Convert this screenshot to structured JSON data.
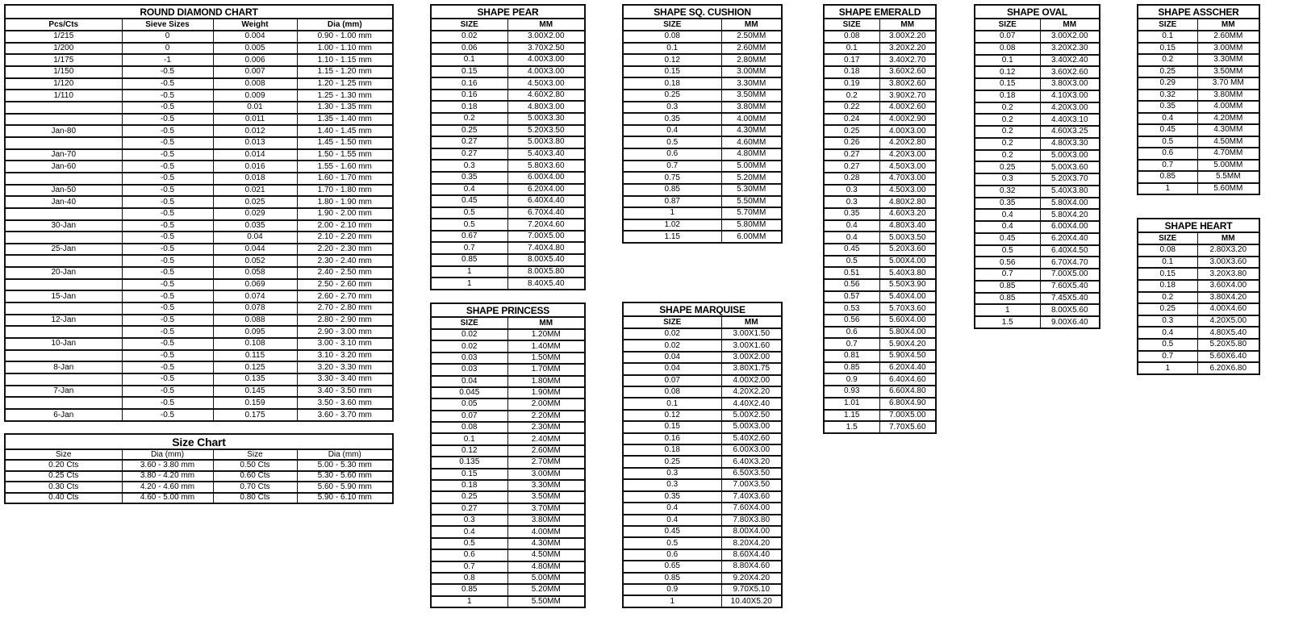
{
  "tables": [
    {
      "id": "round-diamond-chart",
      "title": "ROUND DIAMOND CHART",
      "headers": [
        "Pcs/Cts",
        "Sieve Sizes",
        "Weight",
        "Dia (mm)"
      ],
      "rows": [
        [
          "1/215",
          "0",
          "0.004",
          "0.90 - 1.00 mm"
        ],
        [
          "1/200",
          "0",
          "0.005",
          "1.00 - 1.10 mm"
        ],
        [
          "1/175",
          "-1",
          "0.006",
          "1.10 - 1.15 mm"
        ],
        [
          "1/150",
          "-0.5",
          "0.007",
          "1.15 - 1.20 mm"
        ],
        [
          "1/120",
          "-0.5",
          "0.008",
          "1.20 - 1.25 mm"
        ],
        [
          "1/110",
          "-0.5",
          "0.009",
          "1.25 - 1.30 mm"
        ],
        [
          "",
          "-0.5",
          "0.01",
          "1.30 - 1.35 mm"
        ],
        [
          "",
          "-0.5",
          "0.011",
          "1.35 - 1.40 mm"
        ],
        [
          "Jan-80",
          "-0.5",
          "0.012",
          "1.40 - 1.45 mm"
        ],
        [
          "",
          "-0.5",
          "0.013",
          "1.45 - 1.50 mm"
        ],
        [
          "Jan-70",
          "-0.5",
          "0.014",
          "1.50 - 1.55 mm"
        ],
        [
          "Jan-60",
          "-0.5",
          "0.016",
          "1.55 - 1.60 mm"
        ],
        [
          "",
          "-0.5",
          "0.018",
          "1.60 - 1.70 mm"
        ],
        [
          "Jan-50",
          "-0.5",
          "0.021",
          "1.70 - 1.80 mm"
        ],
        [
          "Jan-40",
          "-0.5",
          "0.025",
          "1.80 - 1.90 mm"
        ],
        [
          "",
          "-0.5",
          "0.029",
          "1.90 - 2.00 mm"
        ],
        [
          "30-Jan",
          "-0.5",
          "0.035",
          "2.00 - 2.10 mm"
        ],
        [
          "",
          "-0.5",
          "0.04",
          "2.10 - 2.20 mm"
        ],
        [
          "25-Jan",
          "-0.5",
          "0.044",
          "2.20 - 2.30 mm"
        ],
        [
          "",
          "-0.5",
          "0.052",
          "2.30 - 2.40 mm"
        ],
        [
          "20-Jan",
          "-0.5",
          "0.058",
          "2.40 - 2.50 mm"
        ],
        [
          "",
          "-0.5",
          "0.069",
          "2.50 - 2.60 mm"
        ],
        [
          "15-Jan",
          "-0.5",
          "0.074",
          "2.60 - 2.70 mm"
        ],
        [
          "",
          "-0.5",
          "0.078",
          "2.70 - 2.80 mm"
        ],
        [
          "12-Jan",
          "-0.5",
          "0.088",
          "2.80 - 2.90 mm"
        ],
        [
          "",
          "-0.5",
          "0.095",
          "2.90 - 3.00 mm"
        ],
        [
          "10-Jan",
          "-0.5",
          "0.108",
          "3.00 - 3.10 mm"
        ],
        [
          "",
          "-0.5",
          "0.115",
          "3.10 - 3.20 mm"
        ],
        [
          "8-Jan",
          "-0.5",
          "0.125",
          "3.20 - 3.30 mm"
        ],
        [
          "",
          "-0.5",
          "0.135",
          "3.30 - 3.40 mm"
        ],
        [
          "7-Jan",
          "-0.5",
          "0.145",
          "3.40 - 3.50 mm"
        ],
        [
          "",
          "-0.5",
          "0.159",
          "3.50 - 3.60 mm"
        ],
        [
          "6-Jan",
          "-0.5",
          "0.175",
          "3.60 - 3.70 mm"
        ]
      ]
    },
    {
      "id": "size-chart",
      "title": "Size Chart",
      "headers": [
        "Size",
        "Dia (mm)",
        "Size",
        "Dia (mm)"
      ],
      "rows": [
        [
          "0.20 Cts",
          "3.60 - 3.80 mm",
          "0.50 Cts",
          "5.00 - 5.30 mm"
        ],
        [
          "0.25 Cts",
          "3.80 - 4.20 mm",
          "0.60 Cts",
          "5.30 - 5.60 mm"
        ],
        [
          "0.30 Cts",
          "4.20 - 4.60 mm",
          "0.70 Cts",
          "5.60 - 5.90 mm"
        ],
        [
          "0.40 Cts",
          "4.60 - 5.00 mm",
          "0.80 Cts",
          "5.90 - 6.10 mm"
        ]
      ]
    },
    {
      "id": "shape-pear",
      "title": "SHAPE PEAR",
      "headers": [
        "SIZE",
        "MM"
      ],
      "rows": [
        [
          "0.02",
          "3.00X2.00"
        ],
        [
          "0.06",
          "3.70X2.50"
        ],
        [
          "0.1",
          "4.00X3.00"
        ],
        [
          "0.15",
          "4.00X3.00"
        ],
        [
          "0.16",
          "4.50X3.00"
        ],
        [
          "0.16",
          "4.60X2.80"
        ],
        [
          "0.18",
          "4.80X3.00"
        ],
        [
          "0.2",
          "5.00X3.30"
        ],
        [
          "0.25",
          "5.20X3.50"
        ],
        [
          "0.27",
          "5.00X3.80"
        ],
        [
          "0.27",
          "5.40X3.40"
        ],
        [
          "0.3",
          "5.80X3.60"
        ],
        [
          "0.35",
          "6.00X4.00"
        ],
        [
          "0.4",
          "6.20X4.00"
        ],
        [
          "0.45",
          "6.40X4.40"
        ],
        [
          "0.5",
          "6.70X4.40"
        ],
        [
          "0.5",
          "7.20X4.60"
        ],
        [
          "0.67",
          "7.00X5.00"
        ],
        [
          "0.7",
          "7.40X4.80"
        ],
        [
          "0.85",
          "8.00X5.40"
        ],
        [
          "1",
          "8.00X5.80"
        ],
        [
          "1",
          "8.40X5.40"
        ]
      ]
    },
    {
      "id": "shape-princess",
      "title": "SHAPE PRINCESS",
      "headers": [
        "SIZE",
        "MM"
      ],
      "rows": [
        [
          "0.02",
          "1.20MM"
        ],
        [
          "0.02",
          "1.40MM"
        ],
        [
          "0.03",
          "1.50MM"
        ],
        [
          "0.03",
          "1.70MM"
        ],
        [
          "0.04",
          "1.80MM"
        ],
        [
          "0.045",
          "1.90MM"
        ],
        [
          "0.05",
          "2.00MM"
        ],
        [
          "0.07",
          "2.20MM"
        ],
        [
          "0.08",
          "2.30MM"
        ],
        [
          "0.1",
          "2.40MM"
        ],
        [
          "0.12",
          "2.60MM"
        ],
        [
          "0.135",
          "2.70MM"
        ],
        [
          "0.15",
          "3.00MM"
        ],
        [
          "0.18",
          "3.30MM"
        ],
        [
          "0.25",
          "3.50MM"
        ],
        [
          "0.27",
          "3.70MM"
        ],
        [
          "0.3",
          "3.80MM"
        ],
        [
          "0.4",
          "4.00MM"
        ],
        [
          "0.5",
          "4.30MM"
        ],
        [
          "0.6",
          "4.50MM"
        ],
        [
          "0.7",
          "4.80MM"
        ],
        [
          "0.8",
          "5.00MM"
        ],
        [
          "0.85",
          "5.20MM"
        ],
        [
          "1",
          "5.50MM"
        ]
      ]
    },
    {
      "id": "shape-sq-cushion",
      "title": "SHAPE SQ. CUSHION",
      "headers": [
        "SIZE",
        "MM"
      ],
      "rows": [
        [
          "0.08",
          "2.50MM"
        ],
        [
          "0.1",
          "2.60MM"
        ],
        [
          "0.12",
          "2.80MM"
        ],
        [
          "0.15",
          "3.00MM"
        ],
        [
          "0.18",
          "3.30MM"
        ],
        [
          "0.25",
          "3.50MM"
        ],
        [
          "0.3",
          "3.80MM"
        ],
        [
          "0.35",
          "4.00MM"
        ],
        [
          "0.4",
          "4.30MM"
        ],
        [
          "0.5",
          "4.60MM"
        ],
        [
          "0.6",
          "4.80MM"
        ],
        [
          "0.7",
          "5.00MM"
        ],
        [
          "0.75",
          "5.20MM"
        ],
        [
          "0.85",
          "5.30MM"
        ],
        [
          "0.87",
          "5.50MM"
        ],
        [
          "1",
          "5.70MM"
        ],
        [
          "1.02",
          "5.80MM"
        ],
        [
          "1.15",
          "6.00MM"
        ]
      ]
    },
    {
      "id": "shape-marquise",
      "title": "SHAPE MARQUISE",
      "headers": [
        "SIZE",
        "MM"
      ],
      "rows": [
        [
          "0.02",
          "3.00X1.50"
        ],
        [
          "0.02",
          "3.00X1.60"
        ],
        [
          "0.04",
          "3.00X2.00"
        ],
        [
          "0.04",
          "3.80X1.75"
        ],
        [
          "0.07",
          "4.00X2.00"
        ],
        [
          "0.08",
          "4.20X2.20"
        ],
        [
          "0.1",
          "4.40X2.40"
        ],
        [
          "0.12",
          "5.00X2.50"
        ],
        [
          "0.15",
          "5.00X3.00"
        ],
        [
          "0.16",
          "5.40X2.60"
        ],
        [
          "0.18",
          "6.00X3.00"
        ],
        [
          "0.25",
          "6.40X3.20"
        ],
        [
          "0.3",
          "6.50X3.50"
        ],
        [
          "0.3",
          "7.00X3.50"
        ],
        [
          "0.35",
          "7.40X3.60"
        ],
        [
          "0.4",
          "7.60X4.00"
        ],
        [
          "0.4",
          "7.80X3.80"
        ],
        [
          "0.45",
          "8.00X4.00"
        ],
        [
          "0.5",
          "8.20X4.20"
        ],
        [
          "0.6",
          "8.60X4.40"
        ],
        [
          "0.65",
          "8.80X4.60"
        ],
        [
          "0.85",
          "9.20X4.20"
        ],
        [
          "0.9",
          "9.70X5.10"
        ],
        [
          "1",
          "10.40X5.20"
        ]
      ]
    },
    {
      "id": "shape-emerald",
      "title": "SHAPE EMERALD",
      "headers": [
        "SIZE",
        "MM"
      ],
      "rows": [
        [
          "0.08",
          "3.00X2.20"
        ],
        [
          "0.1",
          "3.20X2.20"
        ],
        [
          "0.17",
          "3.40X2.70"
        ],
        [
          "0.18",
          "3.60X2.60"
        ],
        [
          "0.19",
          "3.80X2.60"
        ],
        [
          "0.2",
          "3.90X2.70"
        ],
        [
          "0.22",
          "4.00X2.60"
        ],
        [
          "0.24",
          "4.00X2.90"
        ],
        [
          "0.25",
          "4.00X3.00"
        ],
        [
          "0.26",
          "4.20X2.80"
        ],
        [
          "0.27",
          "4.20X3.00"
        ],
        [
          "0.27",
          "4.50X3.00"
        ],
        [
          "0.28",
          "4.70X3.00"
        ],
        [
          "0.3",
          "4.50X3.00"
        ],
        [
          "0.3",
          "4.80X2.80"
        ],
        [
          "0.35",
          "4.60X3.20"
        ],
        [
          "0.4",
          "4.80X3.40"
        ],
        [
          "0.4",
          "5.00X3.50"
        ],
        [
          "0.45",
          "5.20X3.60"
        ],
        [
          "0.5",
          "5.00X4.00"
        ],
        [
          "0.51",
          "5.40X3.80"
        ],
        [
          "0.56",
          "5.50X3.90"
        ],
        [
          "0.57",
          "5.40X4.00"
        ],
        [
          "0.53",
          "5.70X3.60"
        ],
        [
          "0.56",
          "5.60X4.00"
        ],
        [
          "0.6",
          "5.80X4.00"
        ],
        [
          "0.7",
          "5.90X4.20"
        ],
        [
          "0.81",
          "5.90X4.50"
        ],
        [
          "0.85",
          "6.20X4.40"
        ],
        [
          "0.9",
          "6.40X4.60"
        ],
        [
          "0.93",
          "6.60X4.80"
        ],
        [
          "1.01",
          "6.80X4.90"
        ],
        [
          "1.15",
          "7.00X5.00"
        ],
        [
          "1.5",
          "7.70X5.60"
        ]
      ]
    },
    {
      "id": "shape-oval",
      "title": "SHAPE OVAL",
      "headers": [
        "SIZE",
        "MM"
      ],
      "rows": [
        [
          "0.07",
          "3.00X2.00"
        ],
        [
          "0.08",
          "3.20X2.30"
        ],
        [
          "0.1",
          "3.40X2.40"
        ],
        [
          "0.12",
          "3.60X2.60"
        ],
        [
          "0.15",
          "3.80X3.00"
        ],
        [
          "0.18",
          "4.10X3.00"
        ],
        [
          "0.2",
          "4.20X3.00"
        ],
        [
          "0.2",
          "4.40X3.10"
        ],
        [
          "0.2",
          "4.60X3.25"
        ],
        [
          "0.2",
          "4.80X3.30"
        ],
        [
          "0.2",
          "5.00X3.00"
        ],
        [
          "0.25",
          "5.00X3.60"
        ],
        [
          "0.3",
          "5.20X3.70"
        ],
        [
          "0.32",
          "5.40X3.80"
        ],
        [
          "0.35",
          "5.80X4.00"
        ],
        [
          "0.4",
          "5.80X4.20"
        ],
        [
          "0.4",
          "6.00X4.00"
        ],
        [
          "0.45",
          "6.20X4.40"
        ],
        [
          "0.5",
          "6.40X4.50"
        ],
        [
          "0.56",
          "6.70X4.70"
        ],
        [
          "0.7",
          "7.00X5.00"
        ],
        [
          "0.85",
          "7.60X5.40"
        ],
        [
          "0.85",
          "7.45X5.40"
        ],
        [
          "1",
          "8.00X5.60"
        ],
        [
          "1.5",
          "9.00X6.40"
        ]
      ]
    },
    {
      "id": "shape-asscher",
      "title": "SHAPE ASSCHER",
      "headers": [
        "SIZE",
        "MM"
      ],
      "rows": [
        [
          "0.1",
          "2.60MM"
        ],
        [
          "0.15",
          "3.00MM"
        ],
        [
          "0.2",
          "3.30MM"
        ],
        [
          "0.25",
          "3.50MM"
        ],
        [
          "0.29",
          "3.70 MM"
        ],
        [
          "0.32",
          "3.80MM"
        ],
        [
          "0.35",
          "4.00MM"
        ],
        [
          "0.4",
          "4.20MM"
        ],
        [
          "0.45",
          "4.30MM"
        ],
        [
          "0.5",
          "4.50MM"
        ],
        [
          "0.6",
          "4.70MM"
        ],
        [
          "0.7",
          "5.00MM"
        ],
        [
          "0.85",
          "5.5MM"
        ],
        [
          "1",
          "5.60MM"
        ]
      ]
    },
    {
      "id": "shape-heart",
      "title": "SHAPE HEART",
      "headers": [
        "SIZE",
        "MM"
      ],
      "rows": [
        [
          "0.08",
          "2.80X3.20"
        ],
        [
          "0.1",
          "3.00X3.60"
        ],
        [
          "0.15",
          "3.20X3.80"
        ],
        [
          "0.18",
          "3.60X4.00"
        ],
        [
          "0.2",
          "3.80X4.20"
        ],
        [
          "0.25",
          "4.00X4.60"
        ],
        [
          "0.3",
          "4.20X5.00"
        ],
        [
          "0.4",
          "4.80X5.40"
        ],
        [
          "0.5",
          "5.20X5.80"
        ],
        [
          "0.7",
          "5.60X6.40"
        ],
        [
          "1",
          "6.20X6.80"
        ]
      ]
    }
  ]
}
